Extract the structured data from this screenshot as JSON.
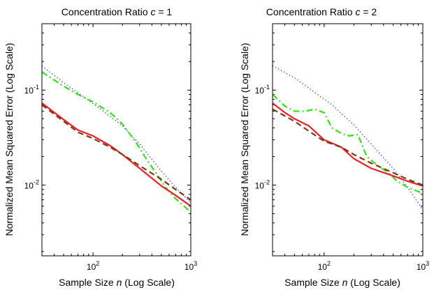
{
  "chart_data": [
    {
      "type": "line",
      "title": "Concentration Ratio c = 1",
      "title_parts": {
        "prefix": "Concentration Ratio ",
        "var": "c",
        "suffix": " = 1"
      },
      "xlabel": "Sample Size n (Log Scale)",
      "xlabel_parts": {
        "prefix": "Sample Size ",
        "var": "n",
        "suffix": " (Log Scale)"
      },
      "ylabel": "Normalized Mean Squared Error (Log Scale)",
      "xscale": "log",
      "yscale": "log",
      "xlim": [
        30,
        1000
      ],
      "ylim": [
        0.0018,
        0.5
      ],
      "x_ticks": [
        {
          "base": "10",
          "exp": "2",
          "value": 100
        },
        {
          "base": "10",
          "exp": "3",
          "value": 1000
        }
      ],
      "y_ticks": [
        {
          "base": "10",
          "exp": "-1",
          "value": 0.1
        },
        {
          "base": "10",
          "exp": "-2",
          "value": 0.01
        }
      ],
      "grid": false,
      "series": [
        {
          "style": "dotted",
          "color": "#3a4bd8",
          "x": [
            30,
            50,
            80,
            120,
            200,
            300,
            500,
            700,
            1000
          ],
          "y": [
            0.18,
            0.12,
            0.085,
            0.063,
            0.042,
            0.027,
            0.014,
            0.0095,
            0.0065
          ]
        },
        {
          "style": "dashdot",
          "color": "#33e01a",
          "x": [
            30,
            50,
            70,
            100,
            150,
            200,
            270,
            350,
            450,
            550,
            700,
            1000
          ],
          "y": [
            0.155,
            0.11,
            0.09,
            0.075,
            0.058,
            0.044,
            0.029,
            0.019,
            0.013,
            0.0095,
            0.0072,
            0.0052
          ]
        },
        {
          "style": "solid",
          "color": "#e8202a",
          "x": [
            30,
            50,
            70,
            100,
            150,
            200,
            300,
            500,
            700,
            1000
          ],
          "y": [
            0.073,
            0.049,
            0.038,
            0.033,
            0.026,
            0.021,
            0.015,
            0.0098,
            0.0078,
            0.006
          ]
        },
        {
          "style": "dashed",
          "color": "#7a3a12",
          "x": [
            30,
            50,
            70,
            100,
            150,
            200,
            300,
            500,
            700,
            1000
          ],
          "y": [
            0.07,
            0.047,
            0.036,
            0.031,
            0.025,
            0.021,
            0.016,
            0.0115,
            0.009,
            0.007
          ]
        }
      ]
    },
    {
      "type": "line",
      "title": "Concentration Ratio c = 2",
      "title_parts": {
        "prefix": "Concentration Ratio ",
        "var": "c",
        "suffix": " = 2"
      },
      "xlabel": "Sample Size n (Log Scale)",
      "xlabel_parts": {
        "prefix": "Sample Size ",
        "var": "n",
        "suffix": " (Log Scale)"
      },
      "ylabel": "Normalized Mean Squared Error (Log Scale)",
      "xscale": "log",
      "yscale": "log",
      "xlim": [
        30,
        1000
      ],
      "ylim": [
        0.0018,
        0.5
      ],
      "x_ticks": [
        {
          "base": "10",
          "exp": "2",
          "value": 100
        },
        {
          "base": "10",
          "exp": "3",
          "value": 1000
        }
      ],
      "y_ticks": [
        {
          "base": "10",
          "exp": "-1",
          "value": 0.1
        },
        {
          "base": "10",
          "exp": "-2",
          "value": 0.01
        }
      ],
      "grid": false,
      "series": [
        {
          "style": "dotted",
          "color": "#3a4bd8",
          "x": [
            30,
            50,
            80,
            120,
            200,
            300,
            500,
            700,
            1000
          ],
          "y": [
            0.18,
            0.135,
            0.095,
            0.07,
            0.043,
            0.027,
            0.015,
            0.0095,
            0.0055
          ]
        },
        {
          "style": "dashdot",
          "color": "#33e01a",
          "x": [
            30,
            40,
            50,
            65,
            80,
            100,
            120,
            150,
            180,
            220,
            270,
            350,
            450,
            550,
            700,
            1000
          ],
          "y": [
            0.09,
            0.068,
            0.06,
            0.06,
            0.063,
            0.058,
            0.04,
            0.035,
            0.033,
            0.034,
            0.02,
            0.016,
            0.0135,
            0.011,
            0.0095,
            0.0082
          ]
        },
        {
          "style": "solid",
          "color": "#e8202a",
          "x": [
            30,
            40,
            50,
            70,
            100,
            150,
            200,
            300,
            500,
            700,
            1000
          ],
          "y": [
            0.073,
            0.058,
            0.05,
            0.042,
            0.03,
            0.025,
            0.019,
            0.015,
            0.0125,
            0.011,
            0.0098
          ]
        },
        {
          "style": "dashed",
          "color": "#7a3a12",
          "x": [
            30,
            50,
            70,
            100,
            150,
            200,
            300,
            500,
            700,
            1000
          ],
          "y": [
            0.063,
            0.047,
            0.037,
            0.029,
            0.025,
            0.021,
            0.017,
            0.0135,
            0.0115,
            0.01
          ]
        }
      ]
    }
  ]
}
